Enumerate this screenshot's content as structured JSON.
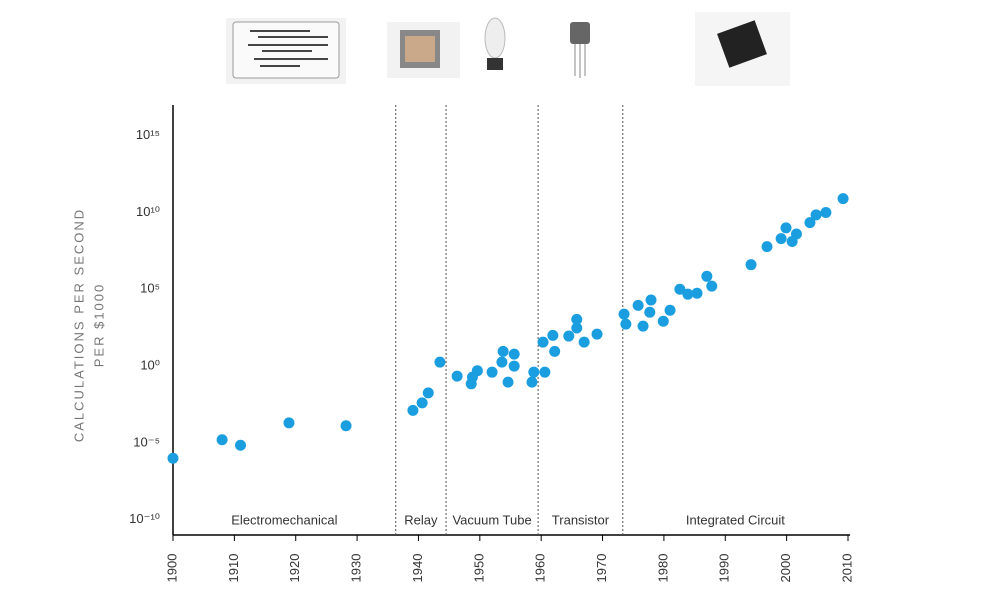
{
  "chart_data": {
    "type": "scatter",
    "y_label": [
      "CALCULATIONS PER SECOND",
      "PER $1000"
    ],
    "x": [
      1900,
      1908,
      1911,
      1918.9,
      1928.2,
      1939.1,
      1940.6,
      1941.6,
      1943.5,
      1946.3,
      1948.6,
      1948.8,
      1949.6,
      1952,
      1953.6,
      1953.8,
      1954.6,
      1955.6,
      1955.6,
      1958.5,
      1958.8,
      1960.6,
      1960.3,
      1961.9,
      1962.2,
      1964.5,
      1965.8,
      1965.8,
      1967,
      1969.1,
      1973.5,
      1973.8,
      1975.8,
      1976.6,
      1977.7,
      1977.9,
      1979.9,
      1981,
      1982.6,
      1983.9,
      1985.4,
      1987,
      1987.8,
      1994.2,
      1996.8,
      1999.1,
      1999.9,
      2000.9,
      2001.6,
      2003.8,
      2004.8,
      2006.4,
      2009.2
    ],
    "values": [
      1e-06,
      1.6e-05,
      7e-06,
      0.0002,
      0.00013,
      0.0013,
      0.004,
      0.018,
      1.8,
      0.22,
      0.07,
      0.19,
      0.5,
      0.4,
      1.8,
      9,
      0.09,
      1,
      6,
      0.09,
      0.4,
      0.4,
      36,
      100,
      9,
      90,
      300,
      1100,
      36,
      120,
      2400,
      540,
      9000,
      400,
      3200,
      20000,
      830,
      4300,
      100000,
      48000,
      55000,
      700000,
      160000,
      4000000,
      60000000,
      200000000,
      1000000000,
      130000000,
      400000000,
      2200000000,
      7000000000,
      10000000000,
      80000000000
    ],
    "color": "#1a9ee0",
    "xlim": [
      1900,
      2010
    ],
    "xticks": [
      1900,
      1910,
      1920,
      1930,
      1940,
      1950,
      1960,
      1970,
      1980,
      1990,
      2000,
      2010
    ],
    "ylim": [
      1e-11,
      1e+17
    ],
    "log_y": true,
    "yticks": [
      {
        "value": 1e-10,
        "label": "10⁻¹⁰"
      },
      {
        "value": 1e-05,
        "label": "10⁻⁵"
      },
      {
        "value": 1,
        "label": "10⁰"
      },
      {
        "value": 100000,
        "label": "10⁵"
      },
      {
        "value": 10000000000,
        "label": "10¹⁰"
      },
      {
        "value": 1000000000000000.0,
        "label": "10¹⁵"
      }
    ],
    "dividers": [
      1936.3,
      1944.5,
      1959.5,
      1973.3
    ],
    "eras": [
      "Electromechanical",
      "Relay",
      "Vacuum Tube",
      "Transistor",
      "Integrated Circuit"
    ]
  }
}
